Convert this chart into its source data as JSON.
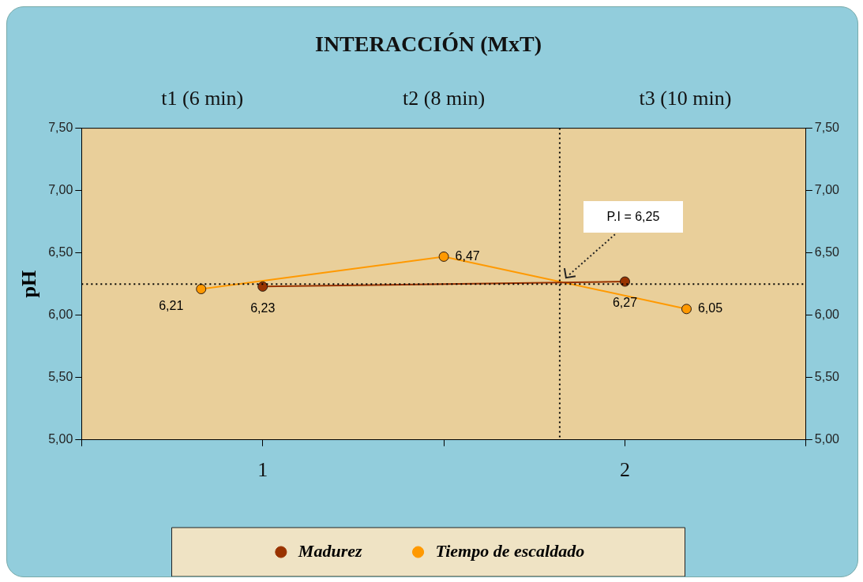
{
  "chart_data": {
    "type": "line",
    "title": "INTERACCIÓN (MxT)",
    "ylabel": "pH",
    "xlim": [
      0.5,
      2.5
    ],
    "xticks": [
      {
        "value": 0.5,
        "label": null
      },
      {
        "value": 1,
        "label": "1"
      },
      {
        "value": 1.5,
        "label": null
      },
      {
        "value": 2,
        "label": "2"
      },
      {
        "value": 2.5,
        "label": null
      }
    ],
    "ylim": [
      5,
      7.5
    ],
    "yticks": [
      {
        "value": 5,
        "label": "5,00"
      },
      {
        "value": 5.5,
        "label": "5,50"
      },
      {
        "value": 6,
        "label": "6,00"
      },
      {
        "value": 6.5,
        "label": "6,50"
      },
      {
        "value": 7,
        "label": "7,00"
      },
      {
        "value": 7.5,
        "label": "7,50"
      }
    ],
    "y2lim": [
      5,
      7.5
    ],
    "y2ticks": [
      {
        "value": 5,
        "label": "5,00"
      },
      {
        "value": 5.5,
        "label": "5,50"
      },
      {
        "value": 6,
        "label": "6,00"
      },
      {
        "value": 6.5,
        "label": "6,50"
      },
      {
        "value": 7,
        "label": "7,00"
      },
      {
        "value": 7.5,
        "label": "7,50"
      }
    ],
    "series": [
      {
        "name": "Madurez",
        "color": "#993300",
        "x": [
          1,
          2
        ],
        "values": [
          6.23,
          6.27
        ],
        "value_labels": [
          "6,23",
          "6,27"
        ]
      },
      {
        "name": "Tiempo de escaldado",
        "color": "#ff9900",
        "x": [
          0.83,
          1.5,
          2.17
        ],
        "values": [
          6.21,
          6.47,
          6.05
        ],
        "value_labels": [
          "6,21",
          "6,47",
          "6,05"
        ]
      }
    ],
    "ref_lines": [
      {
        "axis": "y",
        "value": 6.25,
        "line_style": "dotted",
        "color": "#000000"
      },
      {
        "axis": "x",
        "value": 1.82,
        "line_style": "dotted",
        "color": "#000000"
      }
    ],
    "annotations": [
      "t1 (6 min)",
      "t2 (8 min)",
      "t3 (10 min)",
      "P.I =  6,25"
    ],
    "marker": "circle",
    "line_style": "solid",
    "grid": false,
    "legend": "bottom"
  }
}
